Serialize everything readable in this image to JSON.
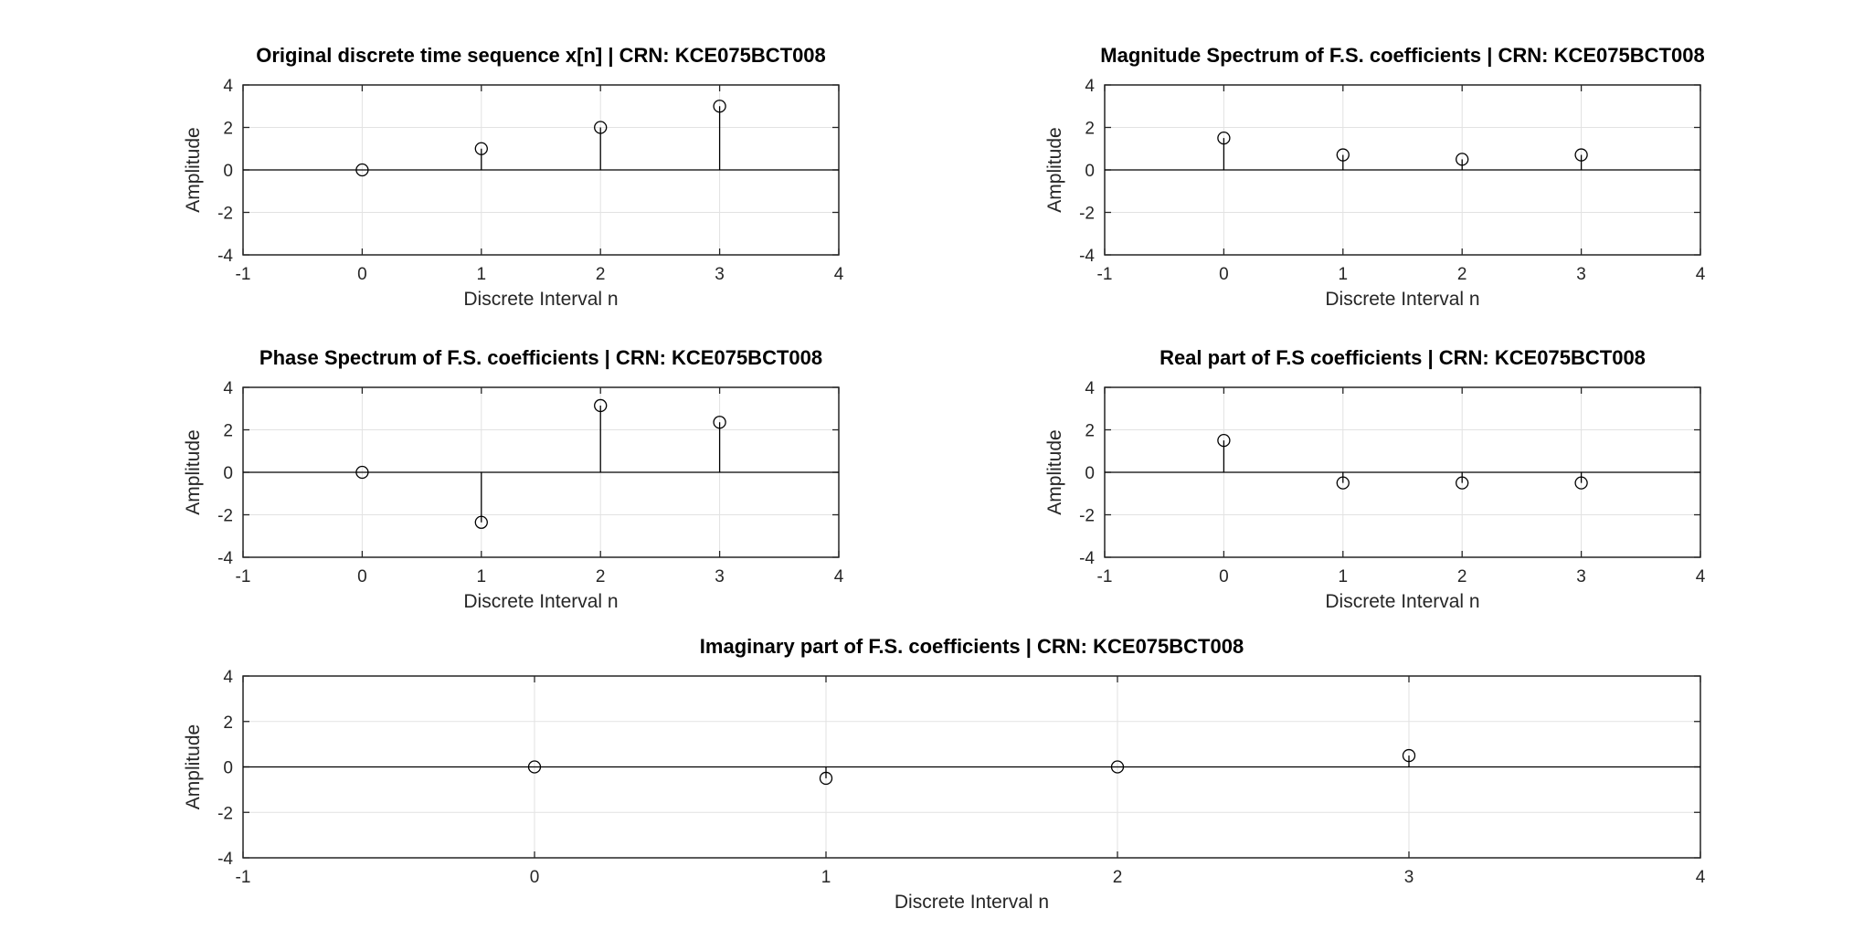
{
  "chart_data": [
    {
      "type": "stem",
      "title": "Original discrete time sequence x[n] | CRN: KCE075BCT008",
      "xlabel": "Discrete Interval n",
      "ylabel": "Amplitude",
      "xlim": [
        -1,
        4
      ],
      "ylim": [
        -4,
        4
      ],
      "xticks": [
        -1,
        0,
        1,
        2,
        3,
        4
      ],
      "yticks": [
        -4,
        -2,
        0,
        2,
        4
      ],
      "grid": true,
      "x": [
        0,
        1,
        2,
        3
      ],
      "values": [
        0,
        1,
        2,
        3
      ]
    },
    {
      "type": "stem",
      "title": "Magnitude Spectrum of F.S. coefficients | CRN: KCE075BCT008",
      "xlabel": "Discrete Interval n",
      "ylabel": "Amplitude",
      "xlim": [
        -1,
        4
      ],
      "ylim": [
        -4,
        4
      ],
      "xticks": [
        -1,
        0,
        1,
        2,
        3,
        4
      ],
      "yticks": [
        -4,
        -2,
        0,
        2,
        4
      ],
      "grid": true,
      "x": [
        0,
        1,
        2,
        3
      ],
      "values": [
        1.5,
        0.707,
        0.5,
        0.707
      ]
    },
    {
      "type": "stem",
      "title": "Phase Spectrum of F.S. coefficients | CRN: KCE075BCT008",
      "xlabel": "Discrete Interval n",
      "ylabel": "Amplitude",
      "xlim": [
        -1,
        4
      ],
      "ylim": [
        -4,
        4
      ],
      "xticks": [
        -1,
        0,
        1,
        2,
        3,
        4
      ],
      "yticks": [
        -4,
        -2,
        0,
        2,
        4
      ],
      "grid": true,
      "x": [
        0,
        1,
        2,
        3
      ],
      "values": [
        0,
        -2.356,
        3.1416,
        2.356
      ]
    },
    {
      "type": "stem",
      "title": "Real part of F.S coefficients | CRN: KCE075BCT008",
      "xlabel": "Discrete Interval n",
      "ylabel": "Amplitude",
      "xlim": [
        -1,
        4
      ],
      "ylim": [
        -4,
        4
      ],
      "xticks": [
        -1,
        0,
        1,
        2,
        3,
        4
      ],
      "yticks": [
        -4,
        -2,
        0,
        2,
        4
      ],
      "grid": true,
      "x": [
        0,
        1,
        2,
        3
      ],
      "values": [
        1.5,
        -0.5,
        -0.5,
        -0.5
      ]
    },
    {
      "type": "stem",
      "title": "Imaginary part of F.S. coefficients | CRN: KCE075BCT008",
      "xlabel": "Discrete Interval n",
      "ylabel": "Amplitude",
      "xlim": [
        -1,
        4
      ],
      "ylim": [
        -4,
        4
      ],
      "xticks": [
        -1,
        0,
        1,
        2,
        3,
        4
      ],
      "yticks": [
        -4,
        -2,
        0,
        2,
        4
      ],
      "grid": true,
      "x": [
        0,
        1,
        2,
        3
      ],
      "values": [
        0,
        -0.5,
        0,
        0.5
      ]
    }
  ]
}
